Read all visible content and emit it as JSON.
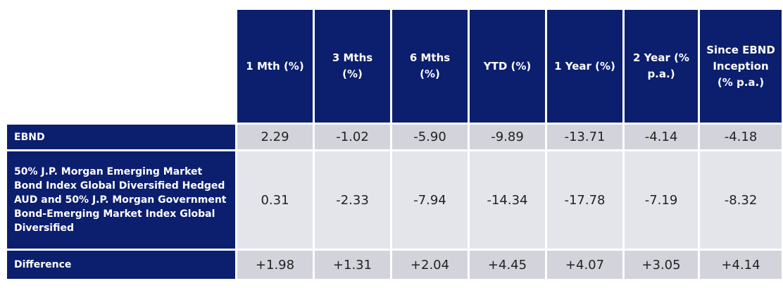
{
  "table": {
    "columns": [
      "1 Mth (%)",
      "3 Mths (%)",
      "6 Mths (%)",
      "YTD (%)",
      "1 Year (%)",
      "2 Year (% p.a.)",
      "Since EBND Inception (% p.a.)"
    ],
    "rows": [
      {
        "label": "EBND",
        "values": [
          "2.29",
          "-1.02",
          "-5.90",
          "-9.89",
          "-13.71",
          "-4.14",
          "-4.18"
        ]
      },
      {
        "label": "50% J.P. Morgan Emerging Market Bond Index Global Diversified Hedged AUD and 50% J.P. Morgan Government Bond-Emerging Market Index Global Diversified",
        "values": [
          "0.31",
          "-2.33",
          "-7.94",
          "-14.34",
          "-17.78",
          "-7.19",
          "-8.32"
        ]
      },
      {
        "label": "Difference",
        "values": [
          "+1.98",
          "+1.31",
          "+2.04",
          "+4.45",
          "+4.07",
          "+3.05",
          "+4.14"
        ]
      }
    ]
  }
}
